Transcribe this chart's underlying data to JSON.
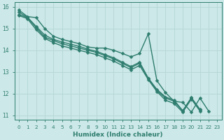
{
  "xlabel": "Humidex (Indice chaleur)",
  "ylabel": "",
  "background_color": "#cce8e8",
  "grid_color": "#b5d5d5",
  "line_color": "#2e7d6e",
  "xlim": [
    -0.5,
    23.5
  ],
  "ylim": [
    10.8,
    16.2
  ],
  "yticks": [
    11,
    12,
    13,
    14,
    15,
    16
  ],
  "xticks": [
    0,
    1,
    2,
    3,
    4,
    5,
    6,
    7,
    8,
    9,
    10,
    11,
    12,
    13,
    14,
    15,
    16,
    17,
    18,
    19,
    20,
    21,
    22,
    23
  ],
  "series": [
    [
      15.85,
      15.55,
      15.5,
      15.0,
      14.65,
      14.5,
      14.4,
      14.3,
      14.15,
      14.1,
      14.1,
      14.0,
      13.85,
      13.7,
      13.85,
      14.75,
      12.6,
      12.05,
      11.65,
      11.6,
      11.15,
      11.8,
      11.2,
      null
    ],
    [
      15.6,
      15.45,
      14.95,
      14.55,
      14.35,
      14.2,
      14.1,
      14.0,
      13.9,
      13.8,
      13.65,
      13.5,
      13.3,
      13.1,
      13.3,
      12.65,
      12.1,
      11.7,
      11.55,
      11.15,
      11.75,
      11.2,
      null,
      null
    ],
    [
      15.65,
      15.5,
      15.05,
      14.6,
      14.45,
      14.3,
      14.2,
      14.1,
      14.0,
      13.9,
      13.75,
      13.6,
      13.4,
      13.2,
      13.4,
      12.7,
      12.15,
      11.8,
      11.65,
      11.2,
      11.8,
      11.25,
      null,
      null
    ],
    [
      15.75,
      15.52,
      15.1,
      14.7,
      14.5,
      14.38,
      14.28,
      14.18,
      14.05,
      13.95,
      13.8,
      13.65,
      13.45,
      13.25,
      13.45,
      12.72,
      12.2,
      11.85,
      11.7,
      11.22,
      11.82,
      11.28,
      null,
      null
    ]
  ],
  "marker": "D",
  "markersize": 2.5,
  "linewidth": 1.0
}
